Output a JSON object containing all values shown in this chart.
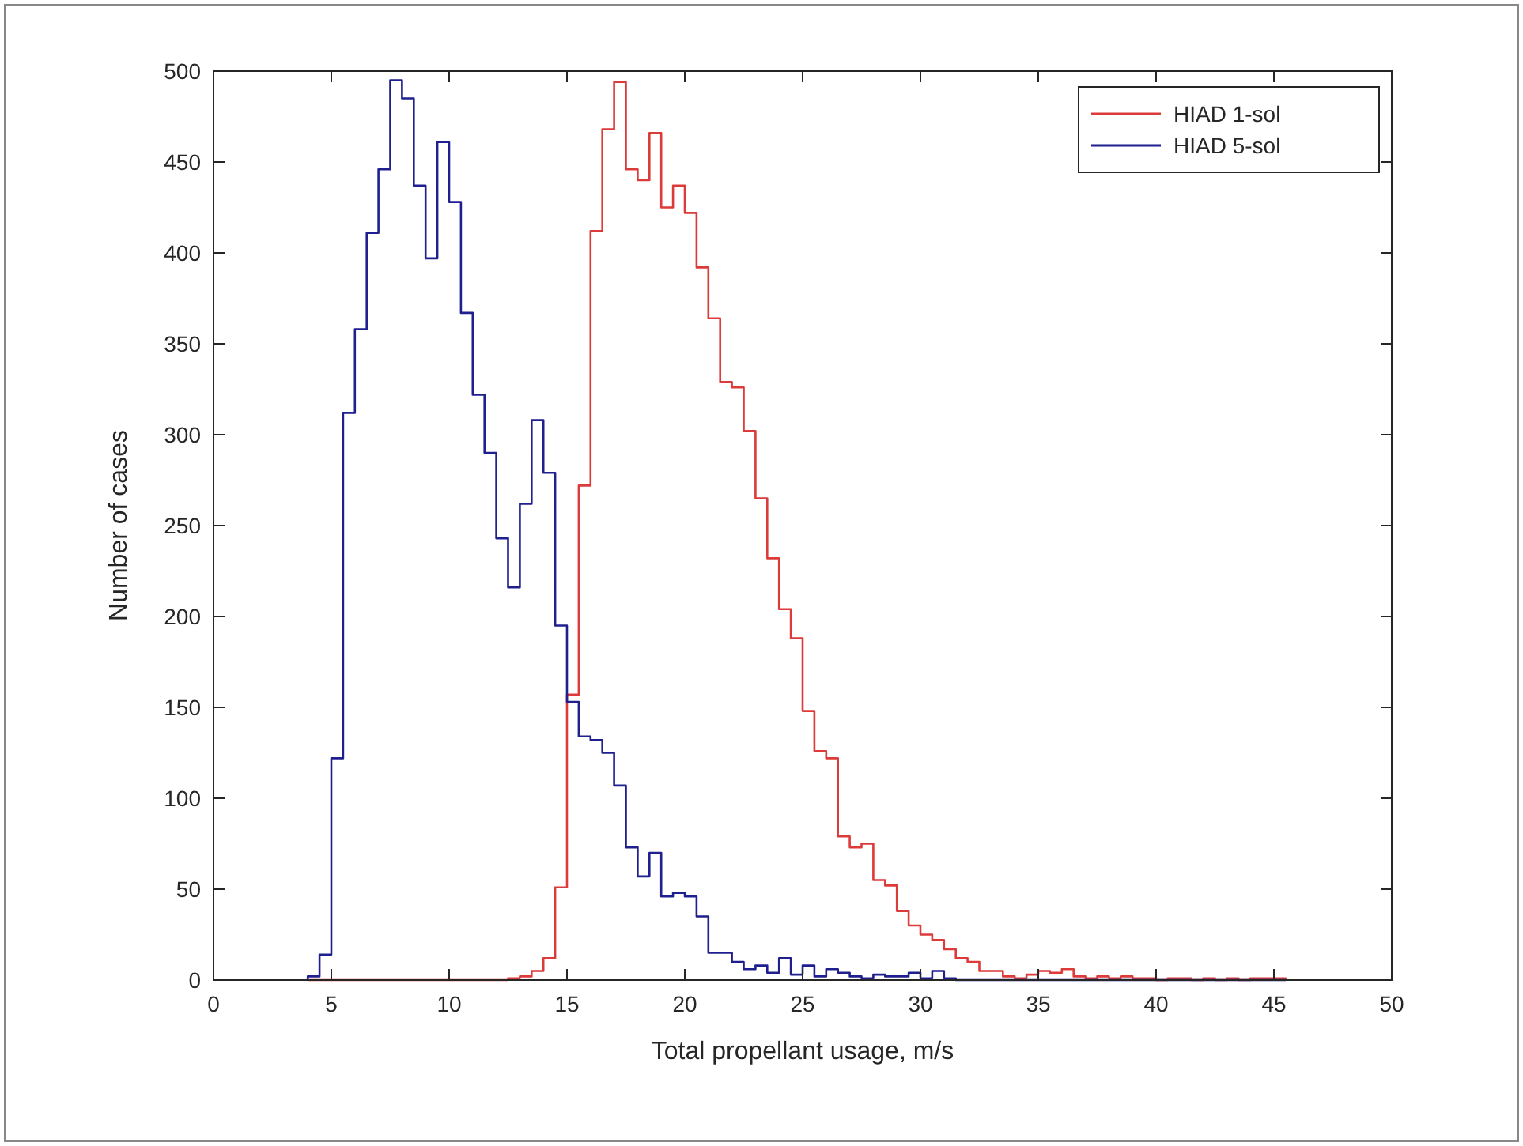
{
  "chart_data": {
    "type": "histogram",
    "xlabel": "Total propellant usage, m/s",
    "ylabel": "Number of cases",
    "xlim": [
      0,
      50
    ],
    "xticks": [
      0,
      5,
      10,
      15,
      20,
      25,
      30,
      35,
      40,
      45,
      50
    ],
    "ylim": [
      0,
      500
    ],
    "yticks": [
      0,
      50,
      100,
      150,
      200,
      250,
      300,
      350,
      400,
      450,
      500
    ],
    "legend": "top right",
    "grid": false,
    "bins": [
      4,
      4.5,
      5,
      5.5,
      6,
      6.5,
      7,
      7.5,
      8,
      8.5,
      9,
      9.5,
      10,
      10.5,
      11,
      11.5,
      12,
      12.5,
      13,
      13.5,
      14,
      14.5,
      15,
      15.5,
      16,
      16.5,
      17,
      17.5,
      18,
      18.5,
      19,
      19.5,
      20,
      20.5,
      21,
      21.5,
      22,
      22.5,
      23,
      23.5,
      24,
      24.5,
      25,
      25.5,
      26,
      26.5,
      27,
      27.5,
      28,
      28.5,
      29,
      29.5,
      30,
      30.5,
      31,
      31.5,
      32,
      32.5,
      33,
      33.5,
      34,
      34.5,
      35,
      35.5,
      36,
      36.5,
      37,
      37.5,
      38,
      38.5,
      39,
      39.5,
      40,
      40.5,
      41,
      41.5,
      42,
      42.5,
      43,
      43.5,
      44,
      44.5,
      45,
      45.5
    ],
    "series": [
      {
        "name": "HIAD 1-sol",
        "color": "#dd3a3a",
        "values": [
          0,
          0,
          0,
          0,
          0,
          0,
          0,
          0,
          0,
          0,
          0,
          0,
          0,
          0,
          0,
          0,
          0,
          1,
          2,
          5,
          12,
          51,
          157,
          272,
          412,
          468,
          494,
          446,
          440,
          466,
          425,
          437,
          422,
          392,
          364,
          329,
          326,
          302,
          265,
          232,
          204,
          188,
          148,
          126,
          122,
          79,
          73,
          75,
          55,
          52,
          38,
          30,
          25,
          22,
          17,
          12,
          10,
          5,
          5,
          2,
          1,
          3,
          5,
          4,
          6,
          2,
          1,
          2,
          1,
          2,
          1,
          1,
          0,
          1,
          1,
          0,
          1,
          0,
          1,
          0,
          1,
          1,
          1
        ]
      },
      {
        "name": "HIAD 5-sol",
        "color": "#1f1f8f",
        "values": [
          2,
          14,
          122,
          312,
          358,
          411,
          446,
          495,
          485,
          437,
          397,
          461,
          428,
          367,
          322,
          290,
          243,
          216,
          262,
          308,
          279,
          195,
          153,
          134,
          132,
          125,
          107,
          73,
          57,
          70,
          46,
          48,
          46,
          35,
          15,
          15,
          10,
          6,
          8,
          4,
          12,
          3,
          8,
          2,
          6,
          4,
          2,
          1,
          3,
          2,
          2,
          4,
          1,
          5,
          1,
          0,
          0,
          0,
          0,
          0,
          0,
          0,
          0,
          0,
          0,
          0,
          0,
          0,
          0,
          0,
          0,
          0,
          0,
          0,
          0,
          0,
          0,
          0,
          0,
          0,
          0,
          0,
          0
        ]
      }
    ]
  }
}
